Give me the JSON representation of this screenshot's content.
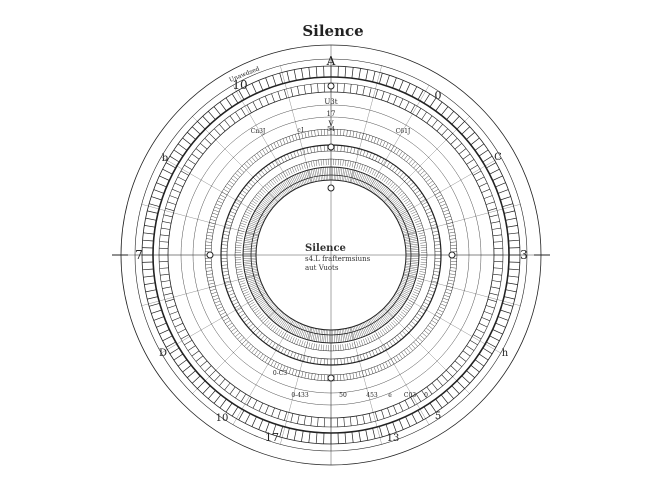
{
  "title": "Silence",
  "center": {
    "title": "Silence",
    "line1": "s4.L fraftermsiuns",
    "line2": "aut Vuots"
  },
  "ring_labels": [
    "A",
    "10",
    "0",
    "7",
    "3",
    "b",
    "C",
    "D",
    "h",
    "10",
    "17",
    "13",
    "5"
  ],
  "inner_labels": [
    "Unawdsed",
    "U3t",
    "17",
    "V",
    "Cn3J",
    "c1",
    "54",
    "C61J",
    "0-C3",
    "0-433",
    "50",
    "453",
    "e",
    "C03",
    "0"
  ],
  "colors": {
    "ink": "#222222",
    "background": "#ffffff"
  }
}
